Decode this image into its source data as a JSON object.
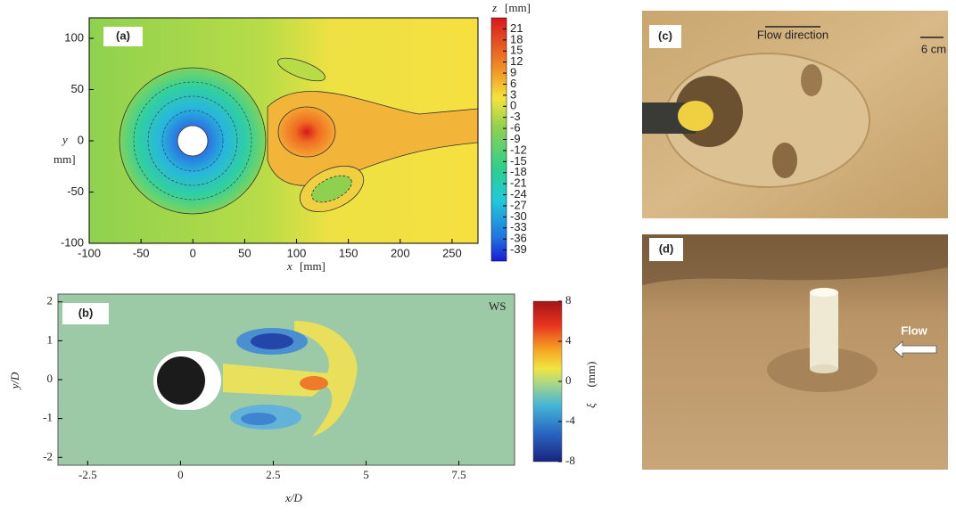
{
  "chart_data": [
    {
      "type": "contour",
      "panel_label": "(a)",
      "x_label": "x",
      "x_unit": "[mm]",
      "y_label": "y",
      "y_unit": "mm]",
      "colorbar_label": "z",
      "colorbar_unit": "[mm]",
      "xlim": [
        -100,
        275
      ],
      "xticks": [
        -100,
        -50,
        0,
        50,
        100,
        150,
        200,
        250
      ],
      "ylim": [
        -100,
        120
      ],
      "yticks": [
        -100,
        -50,
        0,
        50,
        100
      ],
      "clim": [
        -42,
        24
      ],
      "cticks": [
        21,
        18,
        15,
        12,
        9,
        6,
        3,
        0,
        -3,
        -6,
        -9,
        -12,
        -15,
        -18,
        -21,
        -24,
        -27,
        -30,
        -33,
        -36,
        -39
      ]
    },
    {
      "type": "heatmap",
      "panel_label": "(b)",
      "annotation": "WS",
      "x_label": "x/D",
      "y_label": "y/D",
      "colorbar_label": "ξ",
      "colorbar_unit": "(mm)",
      "xlim": [
        -3.3,
        9
      ],
      "xticks": [
        -2.5,
        0,
        2.5,
        5,
        7.5
      ],
      "ylim": [
        -2.2,
        2.2
      ],
      "yticks": [
        -2,
        -1,
        0,
        1,
        2
      ],
      "clim": [
        -8,
        8
      ],
      "cticks": [
        8,
        4,
        0,
        -4,
        -8
      ]
    }
  ],
  "photos": [
    {
      "label": "(c)",
      "texts": [
        "Flow direction",
        "6 cm"
      ]
    },
    {
      "label": "(d)",
      "texts": [
        "Flow"
      ]
    }
  ]
}
